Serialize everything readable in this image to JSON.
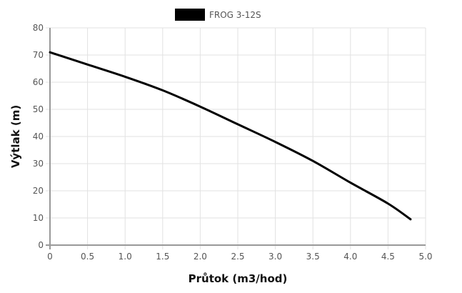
{
  "chart_data": {
    "type": "line",
    "title": "",
    "xlabel": "Průtok (m3/hod)",
    "ylabel": "Výtlak (m)",
    "xlim": [
      0,
      5.0
    ],
    "ylim": [
      0,
      80
    ],
    "xticks": [
      "0",
      "0.5",
      "1.0",
      "1.5",
      "2.0",
      "2.5",
      "3.0",
      "3.5",
      "4.0",
      "4.5",
      "5.0"
    ],
    "yticks": [
      "0",
      "10",
      "20",
      "30",
      "40",
      "50",
      "60",
      "70",
      "80"
    ],
    "grid": true,
    "legend_position": "top",
    "series": [
      {
        "name": "FROG 3-12S",
        "color": "#000000",
        "x": [
          0,
          0.5,
          1.0,
          1.5,
          2.0,
          2.5,
          3.0,
          3.5,
          4.0,
          4.5,
          4.8
        ],
        "values": [
          71,
          66.5,
          62,
          57,
          51,
          44.5,
          38,
          31,
          23,
          15.3,
          9.5
        ]
      }
    ]
  },
  "legend": {
    "items": [
      {
        "label": "FROG 3-12S",
        "color": "#000000"
      }
    ]
  },
  "colors": {
    "grid": "#e2e2e2",
    "axis": "#999999",
    "line": "#000000"
  }
}
